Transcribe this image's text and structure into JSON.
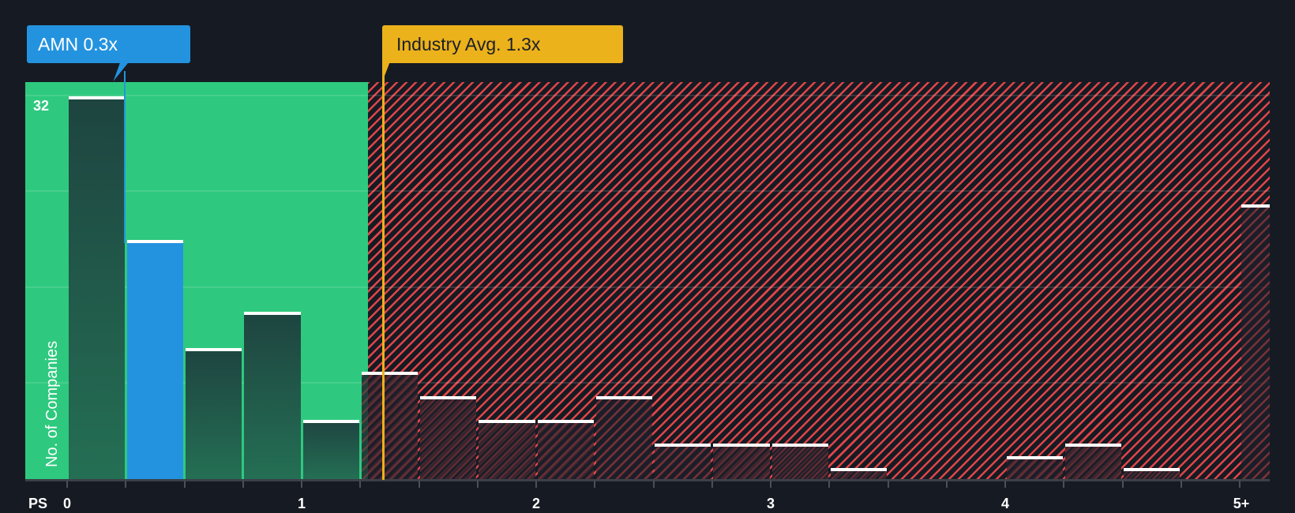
{
  "chart_data": {
    "type": "bar",
    "title": "",
    "xlabel": "PS",
    "ylabel": "No. of Companies",
    "x_tick_labels": [
      "0",
      "1",
      "2",
      "3",
      "4",
      "5+"
    ],
    "y_max_label": "32",
    "ylim": [
      0,
      33
    ],
    "grid": true,
    "gridline_values": [
      8,
      16,
      24,
      32
    ],
    "bin_width": 0.25,
    "categories": [
      "0-0.25",
      "0.25-0.5",
      "0.5-0.75",
      "0.75-1.0",
      "1.0-1.25",
      "1.25-1.5",
      "1.5-1.75",
      "1.75-2.0",
      "2.0-2.25",
      "2.25-2.5",
      "2.5-2.75",
      "2.75-3.0",
      "3.0-3.25",
      "3.25-3.5",
      "3.5-3.75",
      "3.75-4.0",
      "4.0-4.25",
      "4.25-4.5",
      "4.5-4.75",
      "4.75-5.0",
      "5+"
    ],
    "values": [
      32,
      20,
      11,
      14,
      5,
      9,
      7,
      5,
      5,
      7,
      3,
      3,
      3,
      1,
      0,
      0,
      2,
      3,
      1,
      0,
      23
    ],
    "highlight_index": 1,
    "annotations": [
      {
        "label": "AMN 0.3x",
        "value": 0.3,
        "color": "#2493df"
      },
      {
        "label": "Industry Avg. 1.3x",
        "value": 1.3,
        "color": "#ecb21b"
      }
    ],
    "regions": [
      {
        "name": "below-average",
        "from": 0,
        "to": 1.3,
        "color": "#2ec97f"
      },
      {
        "name": "above-average",
        "from": 1.3,
        "to": 5.25,
        "color": "#e04548",
        "pattern": "diagonal-hatch"
      }
    ]
  },
  "labels": {
    "company_callout": "AMN 0.3x",
    "industry_callout": "Industry Avg. 1.3x",
    "y_axis_title": "No. of Companies",
    "x_axis_title": "PS",
    "y_max": "32"
  },
  "colors": {
    "background": "#161b23",
    "green_zone": "#2ec97f",
    "red_hatch": "#e04548",
    "company": "#2493df",
    "industry": "#ecb21b"
  }
}
